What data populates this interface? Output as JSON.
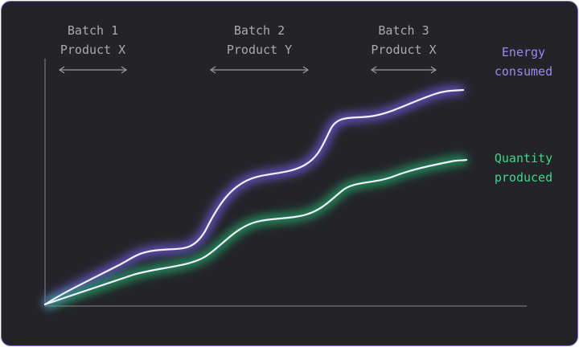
{
  "chart_data": {
    "type": "line",
    "batches": [
      {
        "line1": "Batch 1",
        "line2": "Product X"
      },
      {
        "line1": "Batch 2",
        "line2": "Product Y"
      },
      {
        "line1": "Batch 3",
        "line2": "Product X"
      }
    ],
    "series": [
      {
        "name": "Energy consumed",
        "label_lines": [
          "Energy",
          "consumed"
        ],
        "color": "#9d86f5",
        "glow": "#7f63ff"
      },
      {
        "name": "Quantity produced",
        "label_lines": [
          "Quantity",
          "produced"
        ],
        "color": "#3ed48f",
        "glow": "#22c97a"
      }
    ],
    "colors": {
      "background": "#242428",
      "border": "#7a6cd6",
      "batch_marker": "#2fcf8c",
      "axis": "#77777d",
      "batch_text": "#a9a9ae",
      "curve": "#f4f2ff"
    },
    "grid": false,
    "legend": "right"
  }
}
